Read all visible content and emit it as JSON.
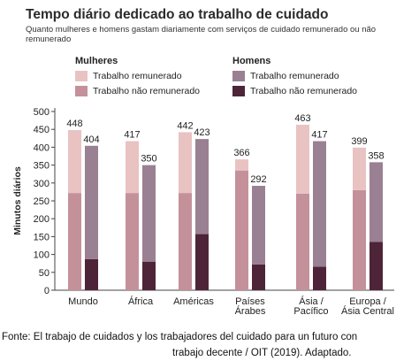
{
  "chart_data": {
    "type": "bar",
    "stacked": true,
    "title": "Tempo diário dedicado ao trabalho de cuidado",
    "subtitle": "Quanto mulheres e homens gastam diariamente com serviços de cuidado remunerado ou não remunerado",
    "ylabel": "Minutos diários",
    "xlabel": "",
    "ylim": [
      0,
      500
    ],
    "yticks": [
      0,
      50,
      100,
      150,
      200,
      250,
      300,
      350,
      400,
      450,
      500
    ],
    "categories": [
      "Mundo",
      "África",
      "Américas",
      "Países Árabes",
      "Ásia / Pacífico",
      "Europa / Ásia Central"
    ],
    "category_lines": [
      [
        "Mundo"
      ],
      [
        "África"
      ],
      [
        "Américas"
      ],
      [
        "Países",
        "Árabes"
      ],
      [
        "Ásia /",
        "Pacífico"
      ],
      [
        "Europa /",
        "Ásia Central"
      ]
    ],
    "groups": [
      {
        "name": "Mulheres",
        "totals": [
          448,
          417,
          442,
          366,
          463,
          399
        ],
        "series": [
          {
            "name": "Trabalho não remunerado",
            "values": [
              272,
              272,
              272,
              335,
              270,
              280
            ],
            "color": "#c4919a"
          },
          {
            "name": "Trabalho remunerado",
            "values": [
              176,
              145,
              170,
              31,
              193,
              119
            ],
            "color": "#e8c3c2"
          }
        ]
      },
      {
        "name": "Homens",
        "totals": [
          404,
          350,
          423,
          292,
          417,
          358
        ],
        "series": [
          {
            "name": "Trabalho não remunerado",
            "values": [
              87,
              80,
              157,
              72,
              66,
              135
            ],
            "color": "#4e2438"
          },
          {
            "name": "Trabalho remunerado",
            "values": [
              317,
              270,
              266,
              220,
              351,
              223
            ],
            "color": "#9a8093"
          }
        ]
      }
    ],
    "legend": {
      "mulheres_title": "Mulheres",
      "homens_title": "Homens",
      "mulheres_items": [
        {
          "label": "Trabalho remunerado",
          "color": "#e8c3c2"
        },
        {
          "label": "Trabalho não remunerado",
          "color": "#c4919a"
        }
      ],
      "homens_items": [
        {
          "label": "Trabalho remunerado",
          "color": "#9a8093"
        },
        {
          "label": "Trabalho não remunerado",
          "color": "#4e2438"
        }
      ]
    },
    "grid": false
  },
  "source": {
    "line1": "Fonte: El trabajo de cuidados y los trabajadores del cuidado para un futuro con",
    "line2": "trabajo decente / OIT (2019). Adaptado."
  }
}
